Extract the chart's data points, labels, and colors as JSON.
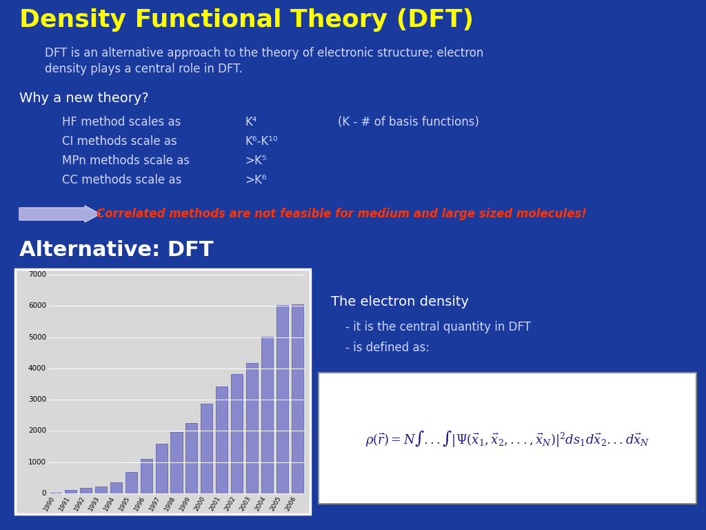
{
  "title": "Density Functional Theory (DFT)",
  "title_color": "#FFFF00",
  "bg_color": "#1a3a9e",
  "subtitle_line1": "DFT is an alternative approach to the theory of electronic structure; electron",
  "subtitle_line2": "density plays a central role in DFT.",
  "subtitle_color": "#d0d8ff",
  "why_text": "Why a new theory?",
  "why_color": "#ffffff",
  "methods": [
    [
      "HF method scales as",
      "K⁴",
      "(K - # of basis functions)"
    ],
    [
      "CI methods scale as",
      "K⁶-K¹⁰",
      ""
    ],
    [
      "MPn methods scale as",
      ">K⁵",
      ""
    ],
    [
      "CC methods scale as",
      ">K⁶",
      ""
    ]
  ],
  "methods_color": "#d0d8ff",
  "arrow_text": "Correlated methods are not feasible for medium and large sized molecules!",
  "arrow_text_color": "#ff3300",
  "alt_title": "Alternative: DFT",
  "alt_title_color": "#ffffff",
  "bar_years": [
    "1990",
    "1991",
    "1992",
    "1993",
    "1994",
    "1995",
    "1996",
    "1997",
    "1998",
    "1999",
    "2000",
    "2001",
    "2002",
    "2003",
    "2004",
    "2005",
    "2006"
  ],
  "bar_values": [
    30,
    100,
    170,
    230,
    360,
    680,
    1100,
    1580,
    1970,
    2260,
    2870,
    3430,
    3810,
    4180,
    5020,
    6030,
    6050
  ],
  "bar_color": "#8888cc",
  "electron_density_text": "The electron density",
  "electron_density_color": "#ffffff",
  "bullet1": "    - it is the central quantity in DFT",
  "bullet2": "    - is defined as:",
  "bullets_color": "#d0d8ff",
  "formula_color": "#1a1a8e",
  "formula_bg": "#ffffff"
}
